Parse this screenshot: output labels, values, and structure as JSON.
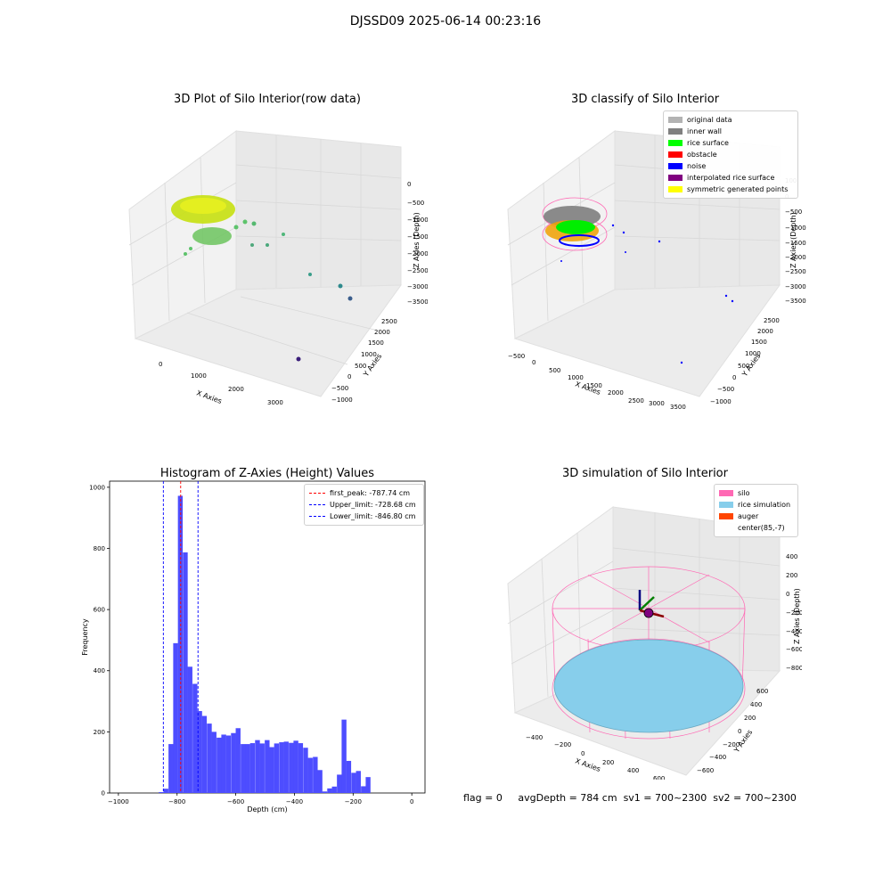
{
  "suptitle": "DJSSD09 2025-06-14 00:23:16",
  "colors": {
    "histogram": "#4d4dff",
    "peak_line": "#ff0000",
    "limit_line": "#0000ff",
    "pane": "#f2f2f2",
    "grid": "#dcdcdc"
  },
  "panels": {
    "raw": {
      "title": "3D Plot of Silo Interior(row data)",
      "xlabel": "X Axies",
      "ylabel": "Y Axies",
      "zlabel": "Z Axies (Depth)",
      "xticks": [
        "0",
        "1000",
        "2000",
        "3000"
      ],
      "yticks": [
        "−1000",
        "−500",
        "0",
        "500",
        "1000",
        "1500",
        "2000",
        "2500"
      ],
      "zticks": [
        "0",
        "−500",
        "−1000",
        "−1500",
        "−2000",
        "−2500",
        "−3000",
        "−3500"
      ]
    },
    "classify": {
      "title": "3D classify of Silo Interior",
      "xlabel": "X Axies",
      "ylabel": "Y Axies",
      "zlabel": "Z Axies (Depth)",
      "xticks": [
        "−500",
        "0",
        "500",
        "1000",
        "1500",
        "2000",
        "2500",
        "3000",
        "3500"
      ],
      "yticks": [
        "−1000",
        "−500",
        "0",
        "500",
        "1000",
        "1500",
        "2000",
        "2500"
      ],
      "zticks": [
        "100",
        "0",
        "−500",
        "−1000",
        "−1500",
        "−2000",
        "−2500",
        "−3000",
        "−3500"
      ],
      "legend": [
        {
          "label": "original data",
          "color": "#b3b3b3"
        },
        {
          "label": "inner wall",
          "color": "#808080"
        },
        {
          "label": "rice surface",
          "color": "#00ff00"
        },
        {
          "label": "obstacle",
          "color": "#ff0000"
        },
        {
          "label": "noise",
          "color": "#0000ff"
        },
        {
          "label": "interpolated rice surface",
          "color": "#800080"
        },
        {
          "label": "symmetric generated points",
          "color": "#ffff00"
        }
      ]
    },
    "simulation": {
      "title": "3D simulation of Silo Interior",
      "xlabel": "X Axies",
      "ylabel": "Y Axies",
      "zlabel": "Z Axies (Depth)",
      "xticks": [
        "−400",
        "−200",
        "0",
        "200",
        "400",
        "600"
      ],
      "yticks": [
        "−600",
        "−400",
        "−200",
        "0",
        "200",
        "400",
        "600"
      ],
      "zticks": [
        "400",
        "200",
        "0",
        "−200",
        "−400",
        "−600",
        "−800"
      ],
      "legend": [
        {
          "label": "silo",
          "color": "#ff69b4"
        },
        {
          "label": "rice simulation",
          "color": "#87ceeb"
        },
        {
          "label": "auger",
          "color": "#ff4500"
        },
        {
          "label": "center(85,-7)",
          "color": ""
        }
      ]
    }
  },
  "footer": {
    "flag": "flag = 0",
    "avg": "avgDepth = 784 cm",
    "sv1": "sv1 = 700~2300",
    "sv2": "sv2 = 700~2300"
  },
  "chart_data": {
    "type": "bar",
    "title": "Histogram of Z-Axies (Height) Values",
    "xlabel": "Depth (cm)",
    "ylabel": "Frequency",
    "xlim": [
      -1030,
      0
    ],
    "ylim": [
      0,
      1020
    ],
    "xticks": [
      -1000,
      -800,
      -600,
      -400,
      -200,
      0
    ],
    "yticks": [
      0,
      200,
      400,
      600,
      800,
      1000
    ],
    "bin_width": 16.4,
    "bins": [
      {
        "x": -854,
        "value": 3
      },
      {
        "x": -838,
        "value": 14
      },
      {
        "x": -821,
        "value": 160
      },
      {
        "x": -805,
        "value": 490
      },
      {
        "x": -789,
        "value": 972
      },
      {
        "x": -772,
        "value": 787
      },
      {
        "x": -756,
        "value": 413
      },
      {
        "x": -739,
        "value": 357
      },
      {
        "x": -723,
        "value": 268
      },
      {
        "x": -707,
        "value": 252
      },
      {
        "x": -690,
        "value": 227
      },
      {
        "x": -674,
        "value": 200
      },
      {
        "x": -657,
        "value": 181
      },
      {
        "x": -641,
        "value": 191
      },
      {
        "x": -625,
        "value": 188
      },
      {
        "x": -608,
        "value": 196
      },
      {
        "x": -592,
        "value": 212
      },
      {
        "x": -575,
        "value": 160
      },
      {
        "x": -559,
        "value": 160
      },
      {
        "x": -543,
        "value": 163
      },
      {
        "x": -526,
        "value": 173
      },
      {
        "x": -510,
        "value": 162
      },
      {
        "x": -493,
        "value": 173
      },
      {
        "x": -477,
        "value": 150
      },
      {
        "x": -461,
        "value": 162
      },
      {
        "x": -444,
        "value": 166
      },
      {
        "x": -428,
        "value": 168
      },
      {
        "x": -411,
        "value": 164
      },
      {
        "x": -395,
        "value": 171
      },
      {
        "x": -379,
        "value": 163
      },
      {
        "x": -362,
        "value": 148
      },
      {
        "x": -346,
        "value": 115
      },
      {
        "x": -329,
        "value": 118
      },
      {
        "x": -313,
        "value": 75
      },
      {
        "x": -297,
        "value": 5
      },
      {
        "x": -280,
        "value": 15
      },
      {
        "x": -264,
        "value": 21
      },
      {
        "x": -247,
        "value": 60
      },
      {
        "x": -231,
        "value": 240
      },
      {
        "x": -215,
        "value": 105
      },
      {
        "x": -198,
        "value": 66
      },
      {
        "x": -182,
        "value": 72
      },
      {
        "x": -165,
        "value": 22
      },
      {
        "x": -149,
        "value": 52
      }
    ],
    "vlines": [
      {
        "label": "first_peak: -787.74 cm",
        "x": -787.74,
        "color": "#ff0000"
      },
      {
        "label": "Upper_limit: -728.68 cm",
        "x": -728.68,
        "color": "#0000ff"
      },
      {
        "label": "Lower_limit: -846.80 cm",
        "x": -846.8,
        "color": "#0000ff"
      }
    ],
    "legend_position": "top-right"
  }
}
